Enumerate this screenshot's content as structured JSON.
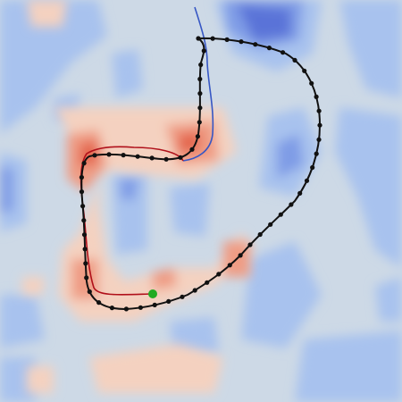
{
  "colors": {
    "background": "#cdd9e6",
    "blue_light": "#a8c2ee",
    "blue_mid": "#7f9ce6",
    "blue_dark": "#5a73d8",
    "red_light": "#f4d1c0",
    "red_mid": "#ef9c84",
    "red_dark": "#e4664d",
    "black_path": "#111111",
    "red_path": "#b0101a",
    "blue_path": "#3757c4",
    "start_marker": "#22aa22"
  }
}
